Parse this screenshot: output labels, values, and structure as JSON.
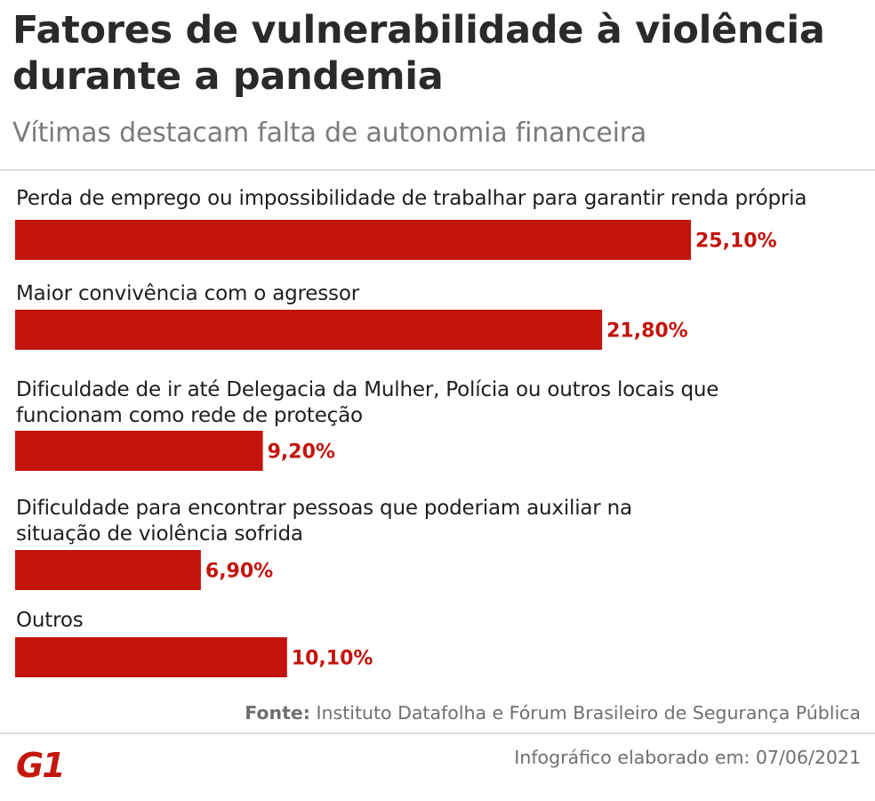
{
  "header": {
    "title": "Fatores de vulnerabilidade à violência durante a pandemia",
    "subtitle": "Vítimas destacam falta de autonomia financeira"
  },
  "chart_data": {
    "type": "bar",
    "orientation": "horizontal",
    "title": "Fatores de vulnerabilidade à violência durante a pandemia",
    "subtitle": "Vítimas destacam falta de autonomia financeira",
    "categories": [
      "Perda de emprego ou impossibilidade de trabalhar para garantir renda própria",
      "Maior convivência com o agressor",
      "Dificuldade de ir até Delegacia da Mulher, Polícia ou outros locais que funcionam como rede de proteção",
      "Dificuldade para encontrar pessoas que poderiam auxiliar na situação de violência sofrida",
      "Outros"
    ],
    "values": [
      25.1,
      21.8,
      9.2,
      6.9,
      10.1
    ],
    "value_labels": [
      "25,10%",
      "21,80%",
      "9,20%",
      "6,90%",
      "10,10%"
    ],
    "unit": "%",
    "bar_color": "#c2140c",
    "label_color": "#c2140c",
    "xlim": [
      0,
      25.1
    ],
    "grid": false,
    "legend": "none"
  },
  "footer": {
    "source_lead": "Fonte:",
    "source_text": " Instituto Datafolha e Fórum Brasileiro de Segurança Pública",
    "credit": "Infográfico elaborado em: 07/06/2021",
    "logo_text": "G1"
  },
  "colors": {
    "brand": "#c4170c",
    "title": "#2a2a2a",
    "subtitle": "#7b7b7b",
    "footer": "#6f6f6f"
  }
}
